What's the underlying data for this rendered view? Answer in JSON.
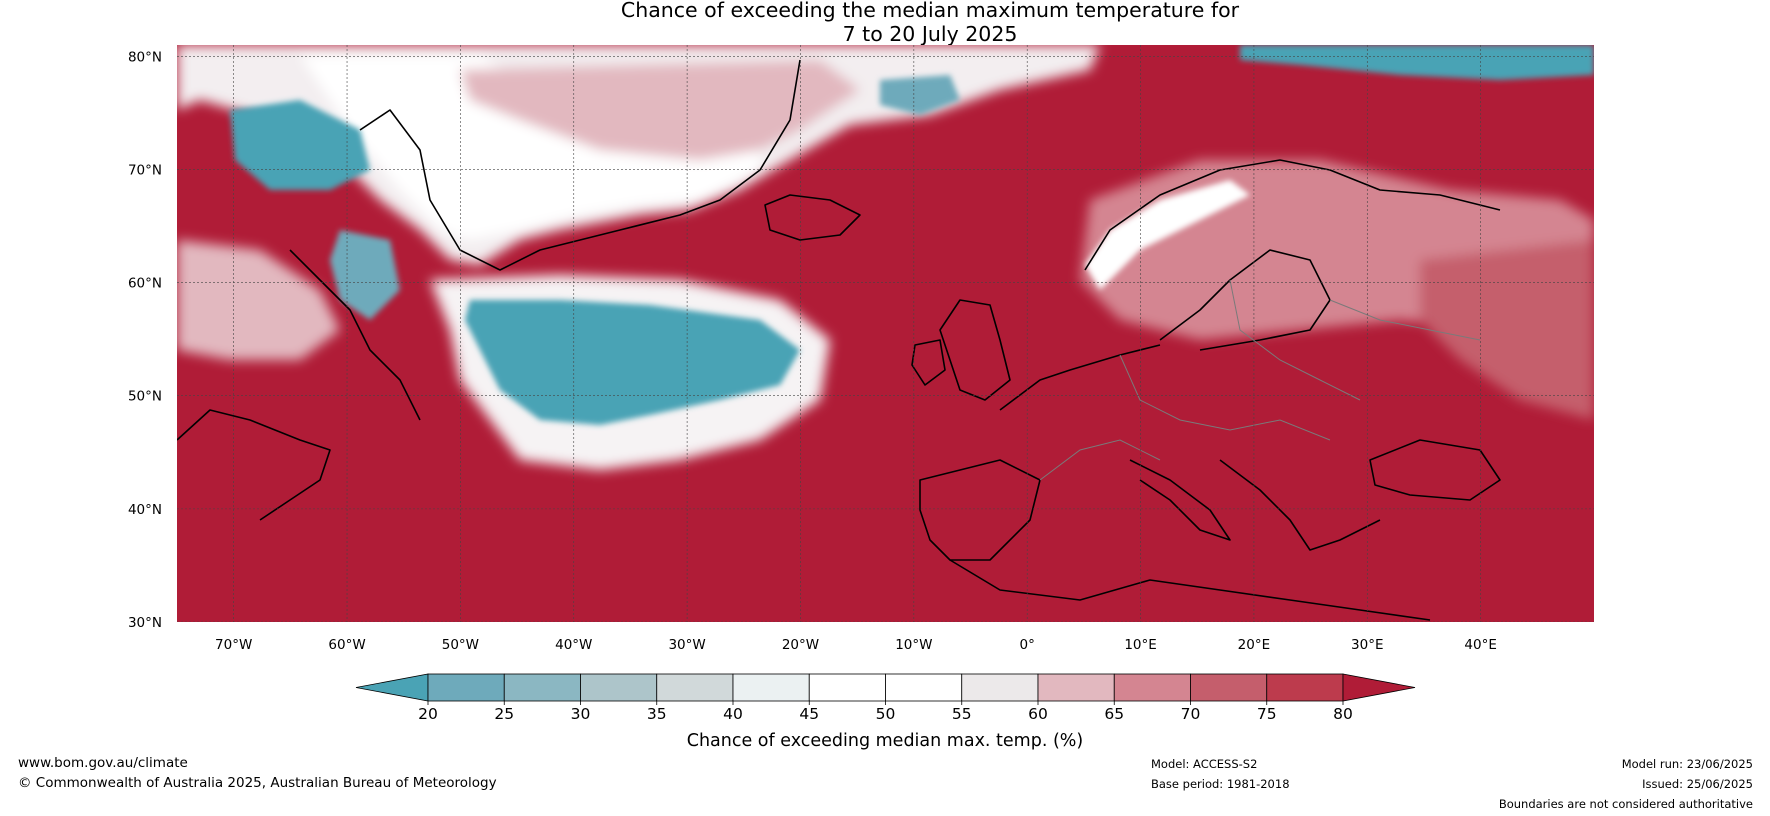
{
  "title": {
    "line1": "Chance of exceeding the median maximum temperature for",
    "line2": "7 to 20 July 2025"
  },
  "map": {
    "lon_range": [
      -75,
      50
    ],
    "lat_range": [
      30,
      81
    ],
    "lat_ticks": [
      "80°N",
      "70°N",
      "60°N",
      "50°N",
      "40°N",
      "30°N"
    ],
    "lat_tick_values": [
      80,
      70,
      60,
      50,
      40,
      30
    ],
    "lon_ticks": [
      "70°W",
      "60°W",
      "50°W",
      "40°W",
      "30°W",
      "20°W",
      "10°W",
      "0°",
      "10°E",
      "20°E",
      "30°E",
      "40°E"
    ],
    "lon_tick_values": [
      -70,
      -60,
      -50,
      -40,
      -30,
      -20,
      -10,
      0,
      10,
      20,
      30,
      40
    ],
    "dominant_color": "#b01c37",
    "cool_color": "#4aa3b5"
  },
  "colorbar": {
    "label": "Chance of exceeding median max. temp. (%)",
    "ticks": [
      "20",
      "25",
      "30",
      "35",
      "40",
      "45",
      "50",
      "55",
      "60",
      "65",
      "70",
      "75",
      "80"
    ],
    "colors": [
      "#4aa3b5",
      "#6eaabb",
      "#8bb7c2",
      "#adc5ca",
      "#d1d9da",
      "#ebf1f2",
      "#ffffff",
      "#ffffff",
      "#ece9ea",
      "#e2b8bf",
      "#d48591",
      "#c55e6c",
      "#bd3b4d",
      "#b01c37"
    ]
  },
  "footer": {
    "website": "www.bom.gov.au/climate",
    "copyright": "© Commonwealth of Australia 2025, Australian Bureau of Meteorology",
    "model": "Model: ACCESS-S2",
    "base_period": "Base period: 1981-2018",
    "model_run": "Model run: 23/06/2025",
    "issued": "Issued: 25/06/2025",
    "disclaimer": "Boundaries are not considered authoritative"
  }
}
